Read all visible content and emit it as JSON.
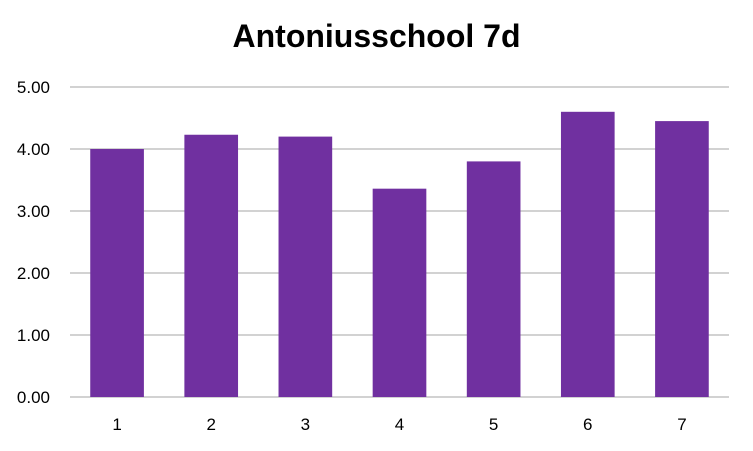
{
  "chart_data": {
    "type": "bar",
    "title": "Antoniusschool 7d",
    "xlabel": "",
    "ylabel": "",
    "categories": [
      "1",
      "2",
      "3",
      "4",
      "5",
      "6",
      "7"
    ],
    "values": [
      4.0,
      4.23,
      4.2,
      3.36,
      3.8,
      4.6,
      4.45
    ],
    "ylim": [
      0,
      5
    ],
    "yticks": [
      "0.00",
      "1.00",
      "2.00",
      "3.00",
      "4.00",
      "5.00"
    ],
    "grid": true,
    "legend": "none",
    "bar_color": "#7030A0",
    "gridline_color": "#A6A6A6"
  }
}
